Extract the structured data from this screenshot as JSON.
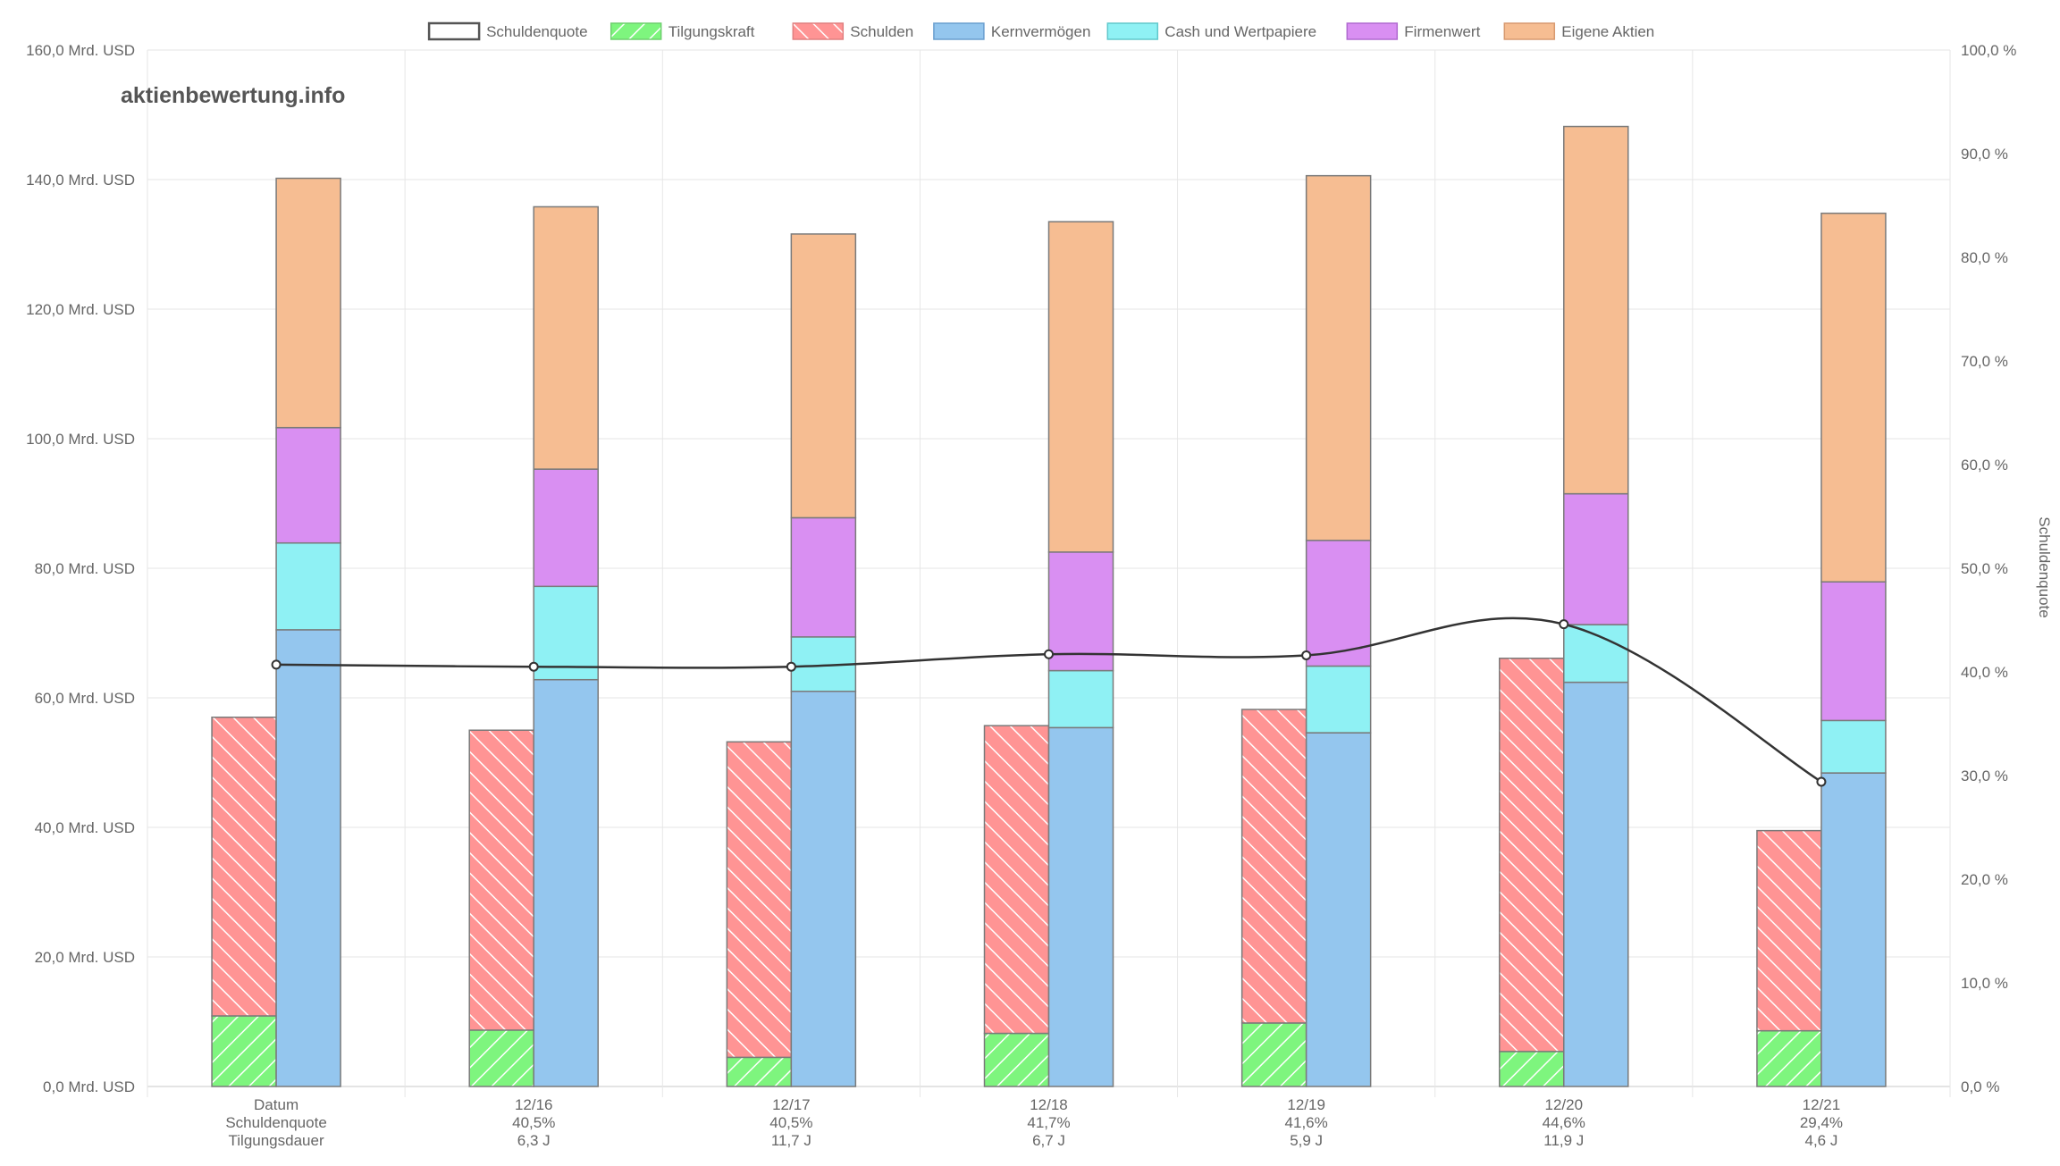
{
  "watermark": "aktienbewertung.info",
  "legend": [
    {
      "label": "Schuldenquote",
      "fill": "#ffffff",
      "stroke": "#555555",
      "pattern": false
    },
    {
      "label": "Tilgungskraft",
      "fill": "#7ef57e",
      "stroke": "#6fcf6f",
      "pattern": true
    },
    {
      "label": "Schulden",
      "fill": "#ff9494",
      "stroke": "#e08080",
      "pattern": true
    },
    {
      "label": "Kernvermögen",
      "fill": "#94c6ee",
      "stroke": "#6a9fcf",
      "pattern": false
    },
    {
      "label": "Cash und Wertpapiere",
      "fill": "#8ff1f4",
      "stroke": "#60c8cc",
      "pattern": false
    },
    {
      "label": "Firmenwert",
      "fill": "#d98ff2",
      "stroke": "#b06ad0",
      "pattern": false
    },
    {
      "label": "Eigene Aktien",
      "fill": "#f6bd92",
      "stroke": "#d89a70",
      "pattern": false
    }
  ],
  "chart_data": {
    "type": "bar",
    "categories": [
      "Datum",
      "12/16",
      "12/17",
      "12/18",
      "12/19",
      "12/20",
      "12/21"
    ],
    "category_lines": [
      [
        "Datum",
        "Schuldenquote",
        "Tilgungsdauer"
      ],
      [
        "12/16",
        "40,5%",
        "6,3 J"
      ],
      [
        "12/17",
        "40,5%",
        "11,7 J"
      ],
      [
        "12/18",
        "41,7%",
        "6,7 J"
      ],
      [
        "12/19",
        "41,6%",
        "5,9 J"
      ],
      [
        "12/20",
        "44,6%",
        "11,9 J"
      ],
      [
        "12/21",
        "29,4%",
        "4,6 J"
      ]
    ],
    "y_left": {
      "min": 0,
      "max": 160,
      "step": 20,
      "unit": "Mrd. USD",
      "ticks": [
        "0,0 Mrd. USD",
        "20,0 Mrd. USD",
        "40,0 Mrd. USD",
        "60,0 Mrd. USD",
        "80,0 Mrd. USD",
        "100,0 Mrd. USD",
        "120,0 Mrd. USD",
        "140,0 Mrd. USD",
        "160,0 Mrd. USD"
      ]
    },
    "y_right": {
      "min": 0,
      "max": 100,
      "step": 10,
      "label": "Schuldenquote",
      "ticks": [
        "0,0 %",
        "10,0 %",
        "20,0 %",
        "30,0 %",
        "40,0 %",
        "50,0 %",
        "60,0 %",
        "70,0 %",
        "80,0 %",
        "90,0 %",
        "100,0 %"
      ]
    },
    "stack_left": [
      {
        "name": "Tilgungskraft",
        "values": [
          10.9,
          8.7,
          4.5,
          8.2,
          9.8,
          5.4,
          8.6
        ]
      },
      {
        "name": "Schulden",
        "values": [
          46.1,
          46.3,
          48.7,
          47.5,
          48.4,
          60.7,
          30.9
        ]
      }
    ],
    "stack_right": [
      {
        "name": "Kernvermögen",
        "values": [
          70.5,
          62.8,
          61.0,
          55.4,
          54.6,
          62.4,
          48.4
        ]
      },
      {
        "name": "Cash und Wertpapiere",
        "values": [
          13.4,
          14.4,
          8.4,
          8.8,
          10.3,
          8.9,
          8.1
        ]
      },
      {
        "name": "Firmenwert",
        "values": [
          17.8,
          18.1,
          18.4,
          18.3,
          19.4,
          20.2,
          21.4
        ]
      },
      {
        "name": "Eigene Aktien",
        "values": [
          38.5,
          40.5,
          43.8,
          51.0,
          56.3,
          56.7,
          56.9
        ]
      }
    ],
    "line": {
      "name": "Schuldenquote",
      "values": [
        40.7,
        40.5,
        40.5,
        41.7,
        41.6,
        44.6,
        29.4
      ]
    },
    "grid": true,
    "legend_position": "top"
  }
}
